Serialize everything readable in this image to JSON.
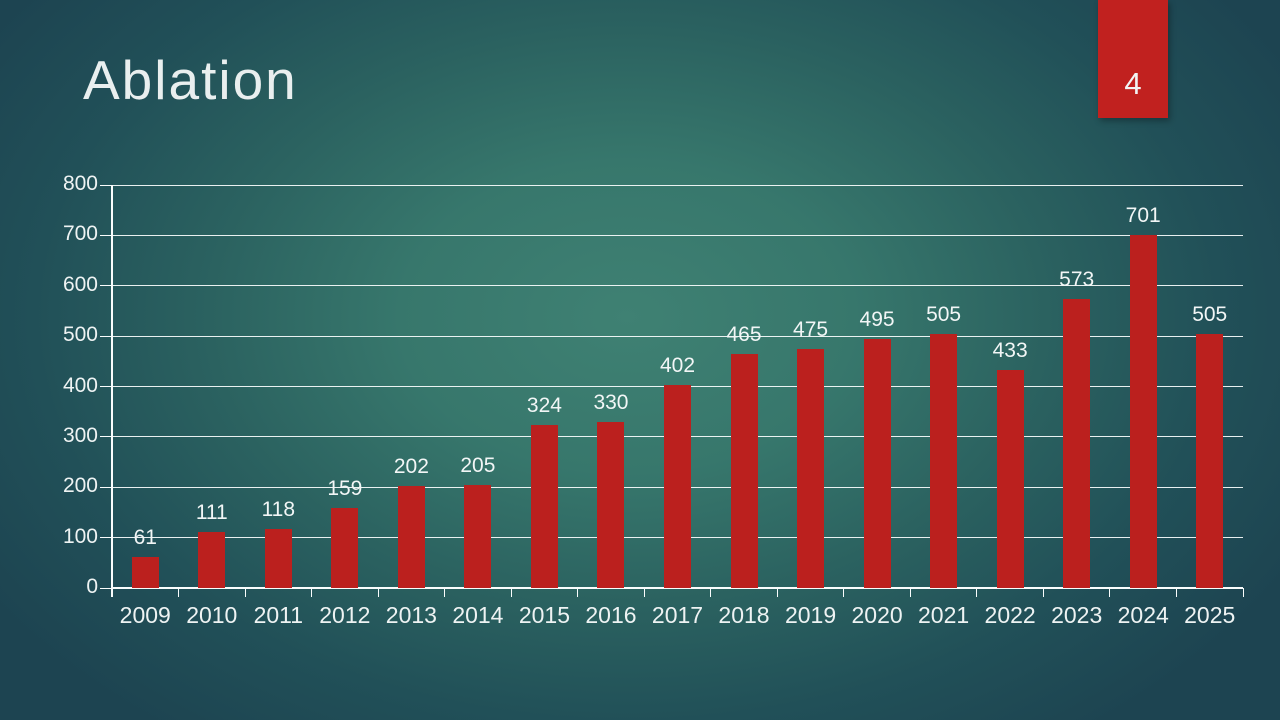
{
  "slide": {
    "title": "Ablation",
    "page_number": "4",
    "accent_color": "#c1211f",
    "background_center_color": "#3f8173",
    "background_edge_color": "#1d4451",
    "text_color": "#eef3f3"
  },
  "chart_data": {
    "type": "bar",
    "title": "",
    "xlabel": "",
    "ylabel": "",
    "categories": [
      "2009",
      "2010",
      "2011",
      "2012",
      "2013",
      "2014",
      "2015",
      "2016",
      "2017",
      "2018",
      "2019",
      "2020",
      "2021",
      "2022",
      "2023",
      "2024",
      "2025"
    ],
    "values": [
      61,
      111,
      118,
      159,
      202,
      205,
      324,
      330,
      402,
      465,
      475,
      495,
      505,
      433,
      573,
      701,
      505
    ],
    "ylim": [
      0,
      800
    ],
    "ytick_interval": 100,
    "ytick_labels": [
      "0",
      "100",
      "200",
      "300",
      "400",
      "500",
      "600",
      "700",
      "800"
    ],
    "bar_color": "#bb201e",
    "grid": true,
    "gridline_color": "#fafdfd",
    "data_labels": true,
    "legend": "none"
  }
}
